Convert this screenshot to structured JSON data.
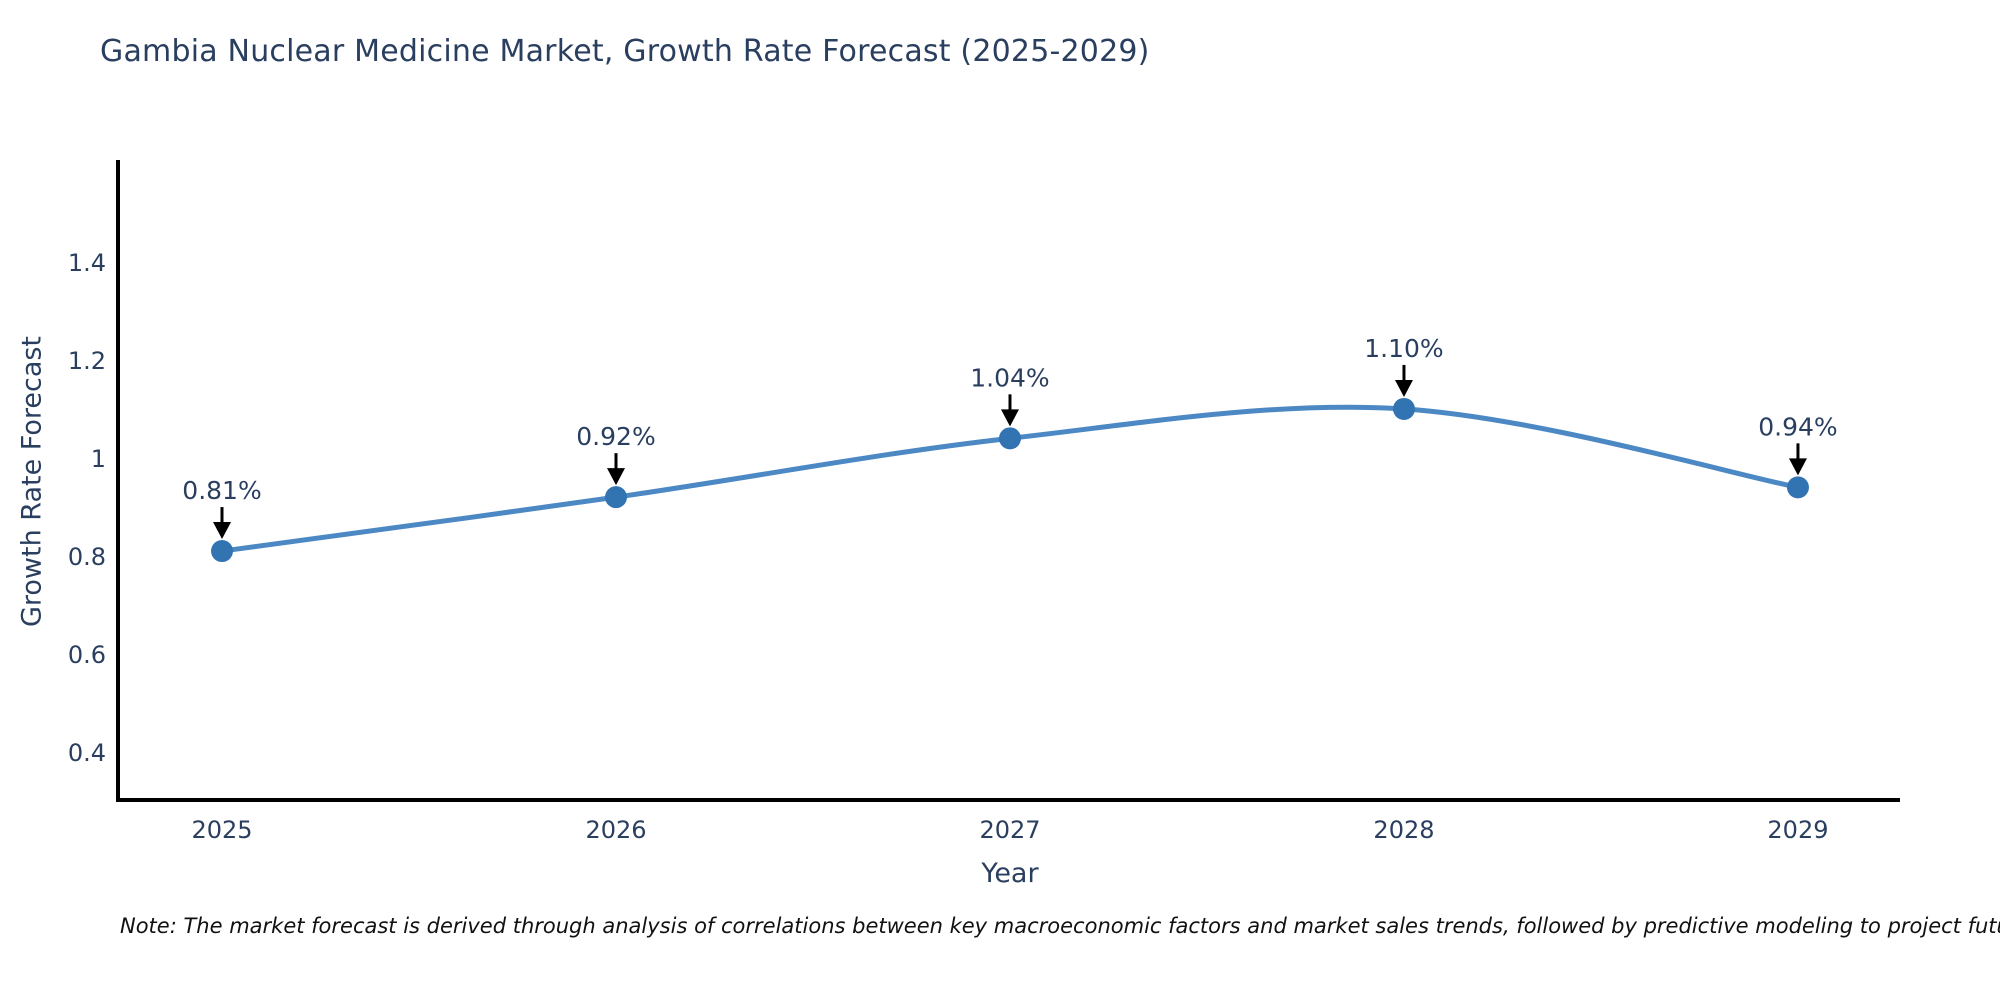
{
  "page": {
    "background": "#ffffff"
  },
  "header": {
    "title": "Gambia Nuclear Medicine Market, Growth Rate Forecast (2025-2029)"
  },
  "footer": {
    "note": "Note: The market forecast is derived through analysis of correlations between key macroeconomic factors and market sales trends, followed by predictive modeling to project future sales"
  },
  "chart_data": {
    "type": "line",
    "line_shape": "spline",
    "title": "Gambia Nuclear Medicine Market, Growth Rate Forecast (2025-2029)",
    "xlabel": "Year",
    "ylabel": "Growth Rate Forecast",
    "x": [
      2025,
      2026,
      2027,
      2028,
      2029
    ],
    "x_tick_labels": [
      "2025",
      "2026",
      "2027",
      "2028",
      "2029"
    ],
    "y": [
      0.81,
      0.92,
      1.04,
      1.1,
      0.94
    ],
    "point_labels": [
      "0.81%",
      "0.92%",
      "1.04%",
      "1.10%",
      "0.94%"
    ],
    "yticks": [
      0.4,
      0.6,
      0.8,
      1,
      1.2,
      1.4
    ],
    "ytick_labels": [
      "0.4",
      "0.6",
      "0.8",
      "1",
      "1.2",
      "1.4"
    ],
    "xlim": [
      2024.736,
      2029.259
    ],
    "ylim": [
      0.302,
      1.608
    ],
    "grid": false,
    "legend": "none",
    "annotations_have_arrows": true,
    "colors": {
      "line": "#4c89c4",
      "marker": "#3273b2",
      "arrow": "#000000",
      "axis": "#000000",
      "text": "#2a3f5f",
      "note_text": "#111111"
    }
  }
}
